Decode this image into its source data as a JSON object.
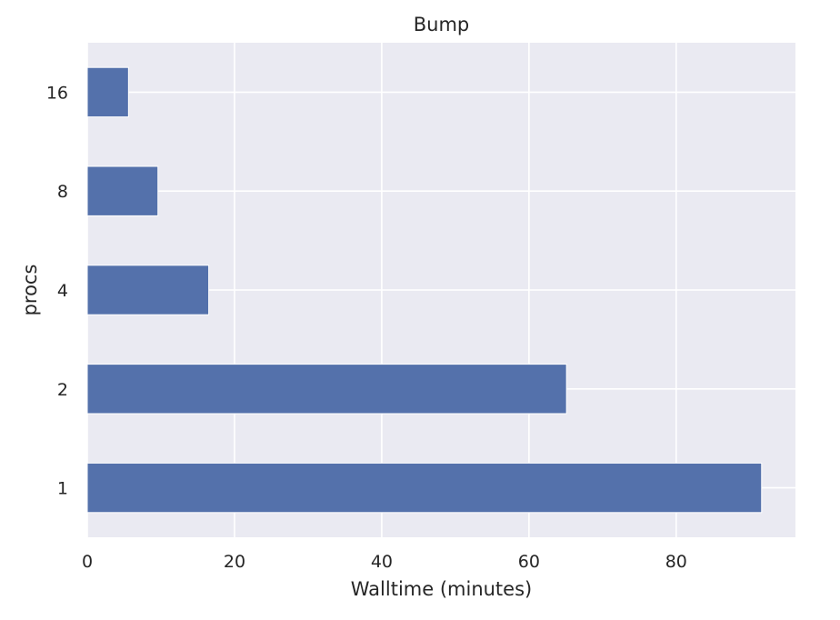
{
  "chart_data": {
    "type": "bar",
    "orientation": "horizontal",
    "title": "Bump",
    "xlabel": "Walltime (minutes)",
    "ylabel": "procs",
    "categories": [
      "1",
      "2",
      "4",
      "8",
      "16"
    ],
    "values": [
      91.6,
      65.1,
      16.5,
      9.6,
      5.6
    ],
    "xlim": [
      0,
      96.2
    ],
    "xticks": [
      0,
      20,
      40,
      60,
      80
    ],
    "grid": true,
    "colors": {
      "bar": "#5471ab",
      "background": "#eaeaf2",
      "grid": "#ffffff"
    }
  }
}
